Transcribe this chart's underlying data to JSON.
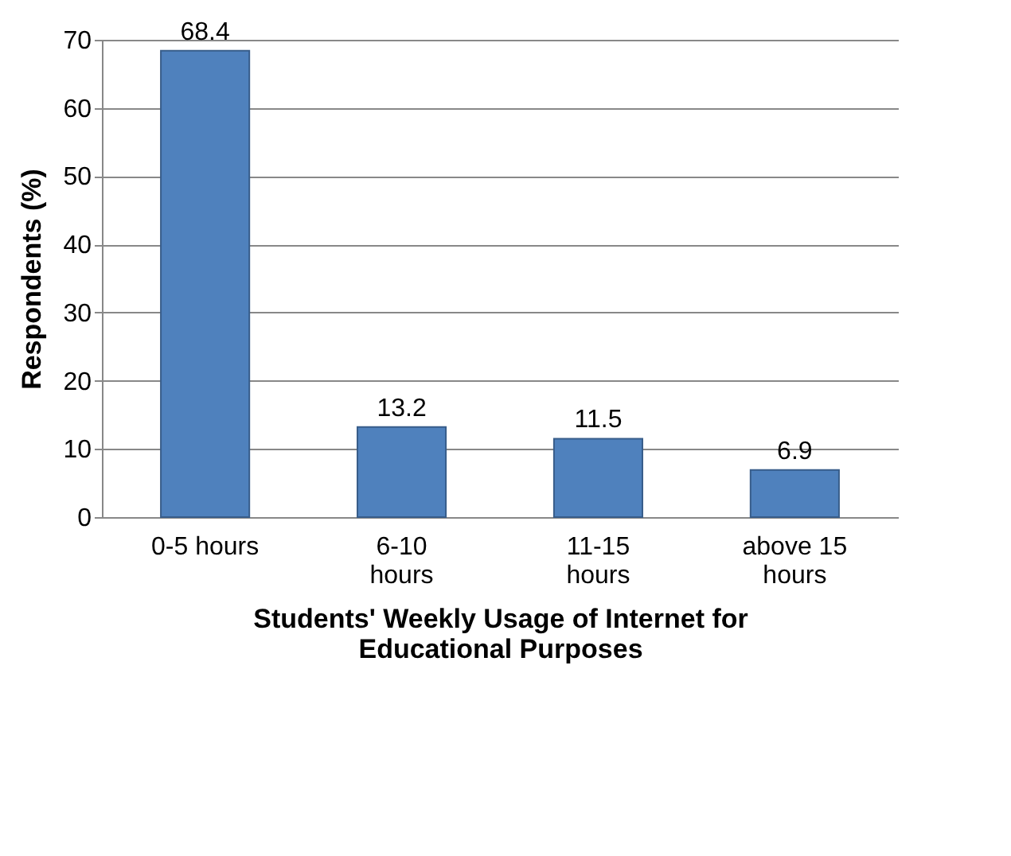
{
  "chart_data": {
    "type": "bar",
    "xlabel": "Students' Weekly Usage of Internet for Educational Purposes",
    "ylabel": "Respondents (%)",
    "categories": [
      "0-5 hours",
      "6-10 hours",
      "11-15 hours",
      "above 15 hours"
    ],
    "values": [
      68.4,
      13.2,
      11.5,
      6.9
    ],
    "color": "#4f81bd",
    "ylim": [
      0,
      70
    ],
    "yticks": [
      0,
      10,
      20,
      30,
      40,
      50,
      60,
      70
    ],
    "grid": "y",
    "data_labels": true
  }
}
